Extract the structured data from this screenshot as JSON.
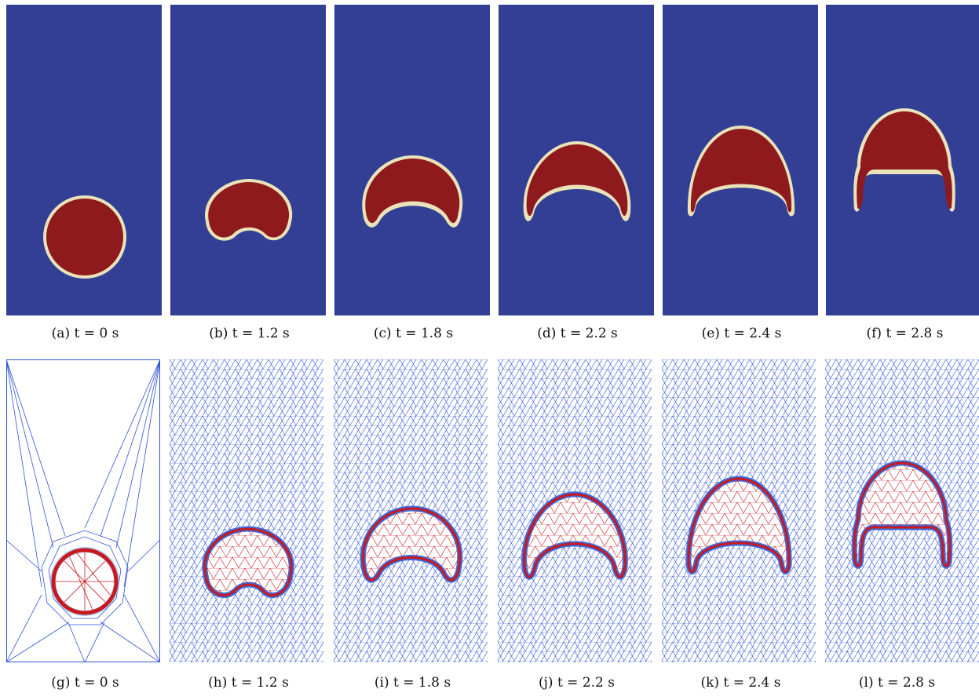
{
  "figure": {
    "bubble_row": [
      {
        "label": "(a) t = 0 s"
      },
      {
        "label": "(b) t = 1.2 s"
      },
      {
        "label": "(c) t = 1.8 s"
      },
      {
        "label": "(d) t = 2.2 s"
      },
      {
        "label": "(e) t = 2.4 s"
      },
      {
        "label": "(f) t = 2.8 s"
      }
    ],
    "mesh_row": [
      {
        "label": "(g) t = 0 s"
      },
      {
        "label": "(h) t = 1.2 s"
      },
      {
        "label": "(i) t = 1.8 s"
      },
      {
        "label": "(j) t = 2.2 s"
      },
      {
        "label": "(k) t = 2.4 s"
      },
      {
        "label": "(l) t = 2.8 s"
      }
    ],
    "colors": {
      "background_phase": "#323f95",
      "bubble_phase": "#8e1a1d",
      "interface": "#e8e0b8",
      "mesh_outer": "#2d52d6",
      "mesh_inner": "#c8191e"
    }
  }
}
